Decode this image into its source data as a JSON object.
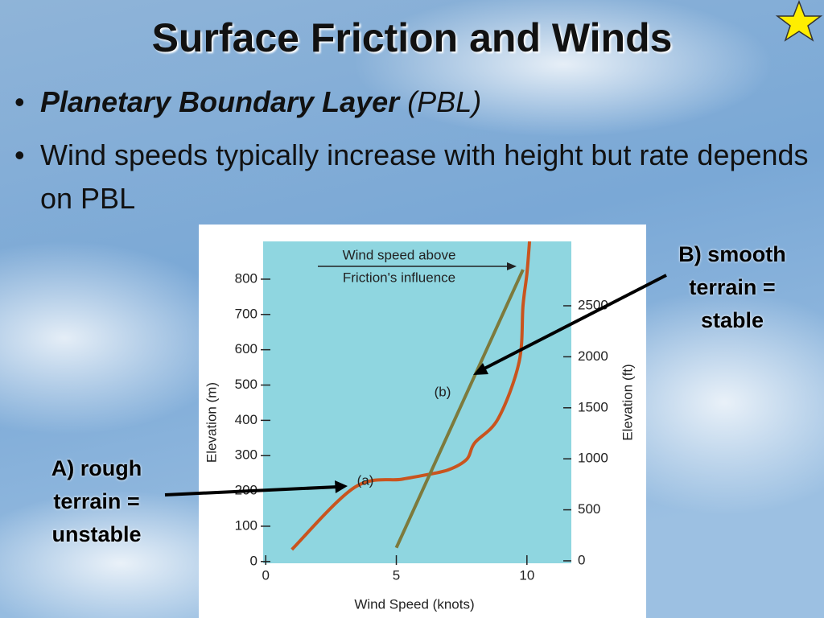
{
  "title": "Surface Friction and Winds",
  "bullets": [
    {
      "bold_italic": "Planetary Boundary Layer",
      "italic": "(PBL)"
    },
    {
      "text": "Wind speeds typically increase with height but rate depends on PBL"
    }
  ],
  "annotations": {
    "b": [
      "B) smooth",
      "terrain =",
      "stable"
    ],
    "a": [
      "A) rough",
      "terrain =",
      "unstable"
    ]
  },
  "chart_data": {
    "type": "line",
    "xlabel": "Wind Speed (knots)",
    "ylabel": "Elevation (m)",
    "y2label": "Elevation (ft)",
    "xlim": [
      -0.1,
      11.7
    ],
    "ylim": [
      -5,
      907
    ],
    "y2lim": [
      -24,
      3131
    ],
    "xticks": [
      0,
      5,
      10
    ],
    "yticks": [
      0,
      100,
      200,
      300,
      400,
      500,
      600,
      700,
      800
    ],
    "y2ticks": [
      0,
      500,
      1000,
      1500,
      2000,
      2500
    ],
    "series": [
      {
        "name": "(a)",
        "color": "#c9541e",
        "x": [
          1.0,
          3.4,
          5.2,
          6.1,
          7.0,
          7.7,
          8.0,
          8.9,
          9.7,
          9.85,
          10.0,
          10.1
        ],
        "values": [
          34,
          210,
          233,
          245,
          260,
          290,
          336,
          405,
          565,
          725,
          816,
          907
        ]
      },
      {
        "name": "(b)",
        "color": "#7d7a3c",
        "x": [
          5.0,
          9.85
        ],
        "values": [
          39,
          827
        ]
      }
    ],
    "annotation": [
      "Wind speed above",
      "Friction's influence"
    ]
  }
}
